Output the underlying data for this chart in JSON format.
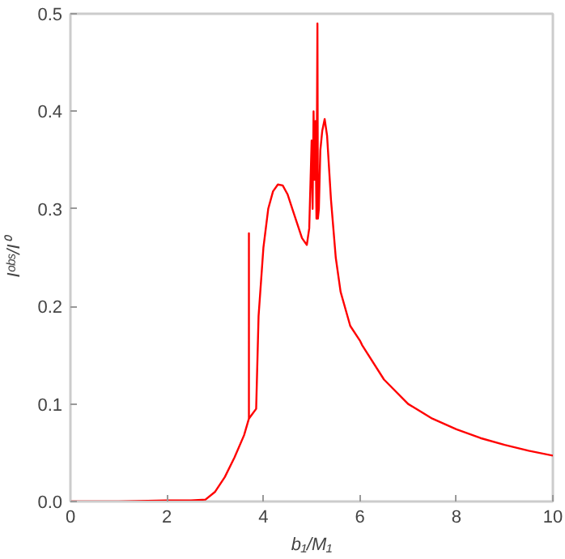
{
  "chart_data": {
    "type": "line",
    "xlabel": "b₁/M₁",
    "ylabel": "Iᵒᵇˢ/I⁰",
    "xlim": [
      0,
      10
    ],
    "ylim": [
      0,
      0.5
    ],
    "xticks": [
      0,
      2,
      4,
      6,
      8,
      10
    ],
    "yticks": [
      {
        "value": 0,
        "label": "0.0"
      },
      0.1,
      0.2,
      0.3,
      0.4,
      0.5
    ],
    "grid": false,
    "marker": "none",
    "line_style": "solid",
    "series": [
      {
        "color": "#ff0000",
        "x": [
          0,
          1,
          2,
          2.5,
          2.8,
          3.0,
          3.2,
          3.4,
          3.6,
          3.7,
          3.7,
          3.7,
          3.85,
          3.9,
          4.0,
          4.1,
          4.2,
          4.3,
          4.4,
          4.5,
          4.6,
          4.7,
          4.8,
          4.9,
          4.95,
          5.0,
          5.02,
          5.04,
          5.06,
          5.08,
          5.1,
          5.12,
          5.13,
          5.15,
          5.18,
          5.22,
          5.27,
          5.32,
          5.4,
          5.5,
          5.6,
          5.8,
          6.0,
          6.05,
          6.5,
          7.0,
          7.5,
          8.0,
          8.5,
          9.0,
          9.5,
          10.0
        ],
        "values": [
          0.0,
          0.0,
          0.001,
          0.001,
          0.002,
          0.01,
          0.025,
          0.045,
          0.068,
          0.085,
          0.275,
          0.085,
          0.095,
          0.19,
          0.26,
          0.3,
          0.318,
          0.325,
          0.324,
          0.315,
          0.3,
          0.285,
          0.27,
          0.263,
          0.28,
          0.37,
          0.3,
          0.4,
          0.33,
          0.39,
          0.29,
          0.49,
          0.29,
          0.3,
          0.36,
          0.38,
          0.392,
          0.375,
          0.31,
          0.25,
          0.215,
          0.18,
          0.165,
          0.16,
          0.125,
          0.1,
          0.085,
          0.074,
          0.065,
          0.058,
          0.052,
          0.047
        ]
      }
    ]
  }
}
